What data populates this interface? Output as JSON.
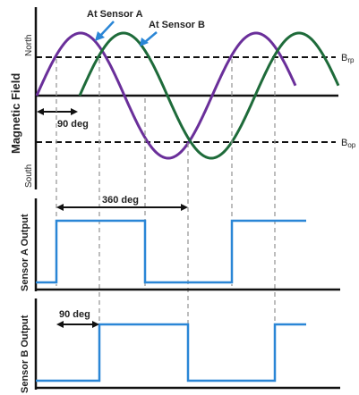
{
  "labels": {
    "sensor_a": "At Sensor A",
    "sensor_b": "At Sensor B",
    "y_title": "Magnetic Field",
    "north": "North",
    "south": "South",
    "brp_main": "B",
    "brp_sub": "rp",
    "bop_main": "B",
    "bop_sub": "op",
    "phase_top": "90 deg",
    "period": "360 deg",
    "sensor_a_output": "Sensor A Output",
    "sensor_b_output": "Sensor B Output",
    "phase_bottom": "90 deg"
  },
  "colors": {
    "sensor_a_wave": "#6a2f9a",
    "sensor_b_wave": "#1e6b3a",
    "output_trace": "#2a86d6",
    "callout_arrow": "#2a86d6",
    "axis": "#111111",
    "guide": "#9a9a9a"
  }
}
